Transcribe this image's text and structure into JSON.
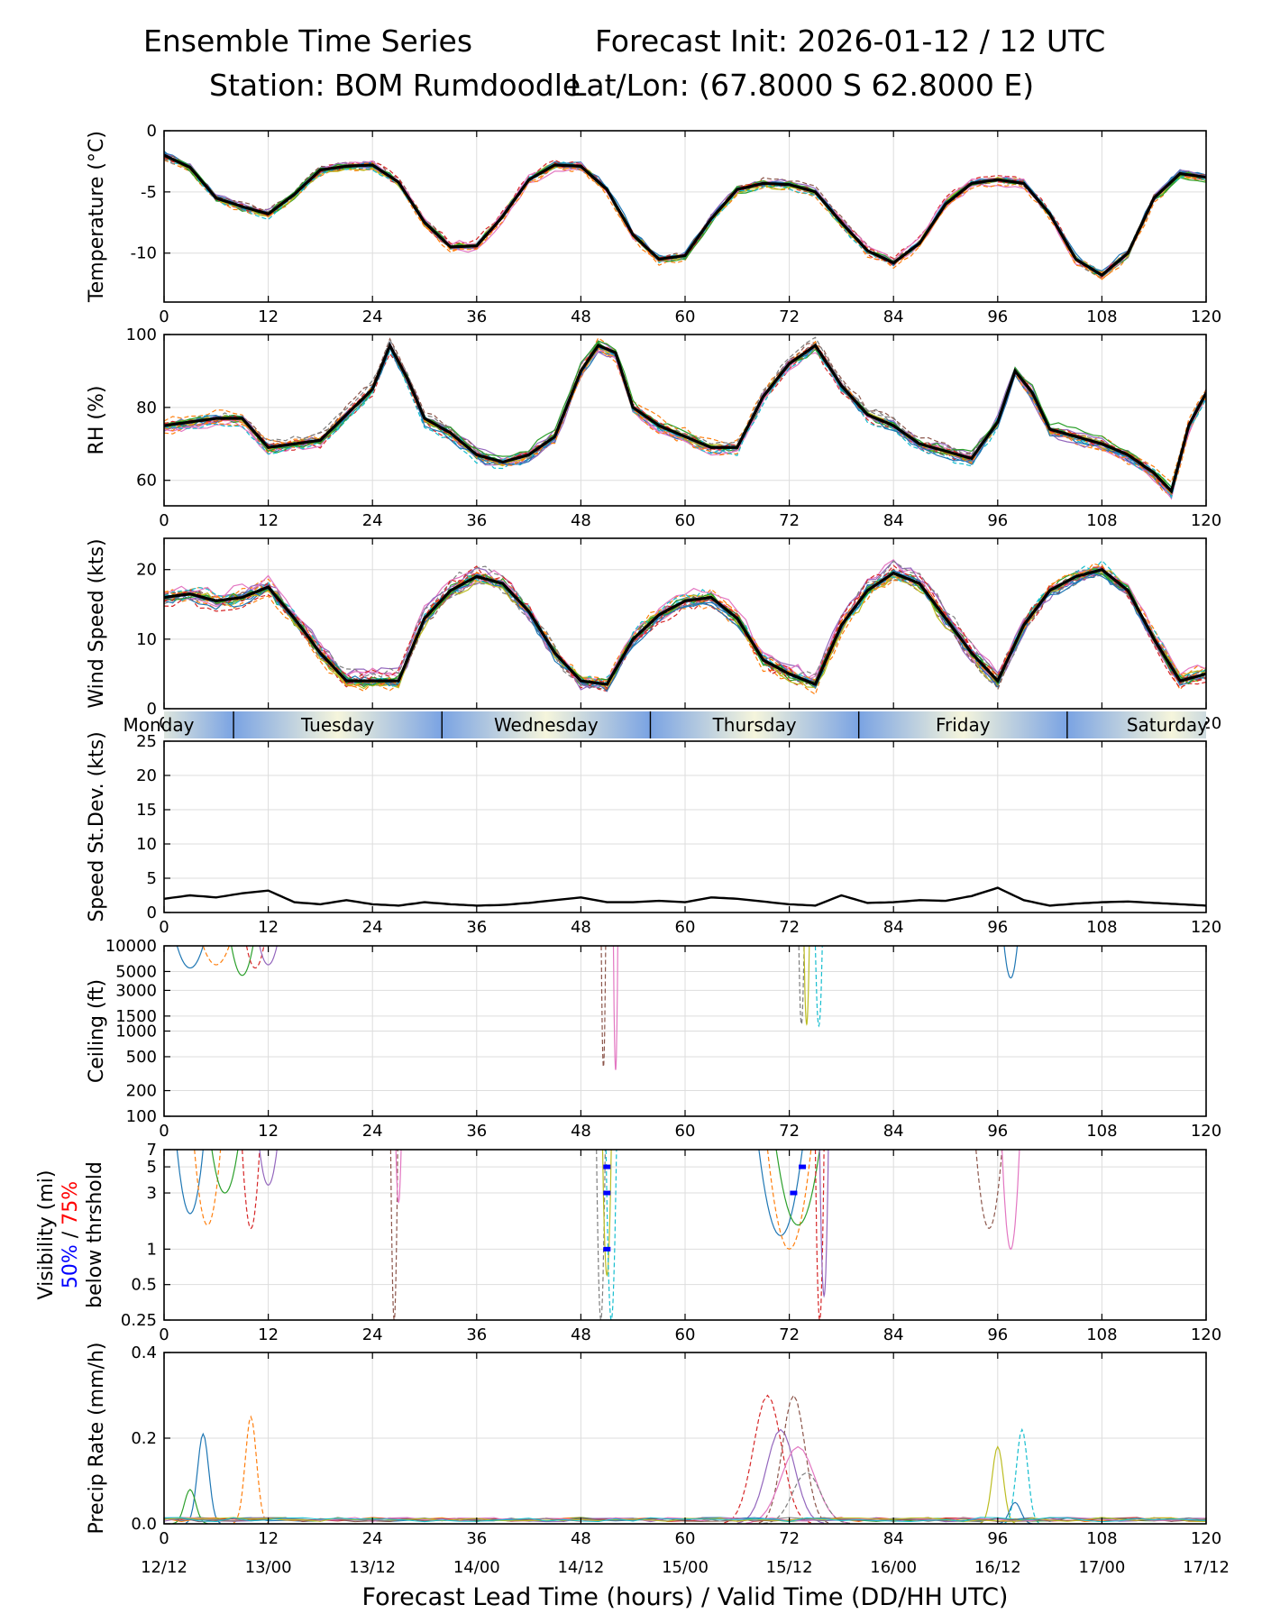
{
  "header": {
    "title": "Ensemble Time Series",
    "init": "Forecast Init: 2026-01-12 / 12 UTC",
    "station": "Station: BOM Rumdoodle",
    "latlon": "Lat/Lon: (67.8000 S 62.8000 E)"
  },
  "colors": {
    "members": [
      "#1f77b4",
      "#ff7f0e",
      "#2ca02c",
      "#d62728",
      "#9467bd",
      "#8c564b",
      "#e377c2",
      "#7f7f7f",
      "#bcbd22",
      "#17becf"
    ],
    "mean": "#000000",
    "p50": "#0000ff",
    "p75": "#ff0000",
    "grid": "#dddddd",
    "day_blue": "#7aa3e3",
    "day_cream": "#f5f5dc"
  },
  "chart_data": {
    "type": "line",
    "x_range": [
      0,
      120
    ],
    "x_ticks": [
      0,
      12,
      24,
      36,
      48,
      60,
      72,
      84,
      96,
      108,
      120
    ],
    "valid_time_labels": [
      "12/12",
      "13/00",
      "13/12",
      "14/00",
      "14/12",
      "15/00",
      "15/12",
      "16/00",
      "16/12",
      "17/00",
      "17/12"
    ],
    "xlabel": "Forecast Lead Time (hours) / Valid Time (DD/HH UTC)",
    "day_names": [
      {
        "name": "Monday",
        "start": -12,
        "end": 8
      },
      {
        "name": "Tuesday",
        "start": 8,
        "end": 32
      },
      {
        "name": "Wednesday",
        "start": 32,
        "end": 56
      },
      {
        "name": "Thursday",
        "start": 56,
        "end": 80
      },
      {
        "name": "Friday",
        "start": 80,
        "end": 104
      },
      {
        "name": "Saturday",
        "start": 104,
        "end": 128
      }
    ],
    "panels": [
      {
        "key": "temperature",
        "ylabel": "Temperature (°C)",
        "scale": "linear",
        "ylim": [
          -14,
          0
        ],
        "yticks": [
          0,
          -5,
          -10
        ],
        "ytick_labels": [
          "0",
          "-5",
          "-10"
        ],
        "mean": {
          "x": [
            0,
            3,
            6,
            9,
            12,
            15,
            18,
            21,
            24,
            27,
            30,
            33,
            36,
            39,
            42,
            45,
            48,
            51,
            54,
            57,
            60,
            63,
            66,
            69,
            72,
            75,
            78,
            81,
            84,
            87,
            90,
            93,
            96,
            99,
            102,
            105,
            108,
            111,
            114,
            117,
            120
          ],
          "y": [
            -2,
            -3,
            -5.5,
            -6.2,
            -6.8,
            -5.2,
            -3.2,
            -2.9,
            -2.8,
            -4.2,
            -7.5,
            -9.5,
            -9.4,
            -7.0,
            -4.0,
            -2.8,
            -2.9,
            -4.8,
            -8.5,
            -10.5,
            -10.2,
            -7.2,
            -4.8,
            -4.3,
            -4.4,
            -5.0,
            -7.5,
            -9.8,
            -10.8,
            -9.2,
            -6.0,
            -4.3,
            -4.0,
            -4.3,
            -6.8,
            -10.5,
            -11.8,
            -10.0,
            -5.5,
            -3.5,
            -3.8
          ]
        },
        "spread": 0.7
      },
      {
        "key": "rh",
        "ylabel": "RH (%)",
        "scale": "linear",
        "ylim": [
          53,
          100
        ],
        "yticks": [
          60,
          80,
          100
        ],
        "ytick_labels": [
          "60",
          "80",
          "100"
        ],
        "mean": {
          "x": [
            0,
            3,
            6,
            9,
            12,
            15,
            18,
            21,
            24,
            26,
            28,
            30,
            33,
            36,
            39,
            42,
            45,
            48,
            50,
            52,
            54,
            57,
            60,
            63,
            66,
            69,
            72,
            75,
            78,
            81,
            84,
            87,
            90,
            93,
            96,
            98,
            100,
            102,
            105,
            108,
            111,
            114,
            116,
            118,
            120
          ],
          "y": [
            75,
            76,
            77,
            77,
            69,
            70,
            71,
            78,
            85,
            97,
            88,
            77,
            73,
            67,
            65,
            67,
            72,
            90,
            97,
            95,
            80,
            75,
            72,
            69,
            69,
            83,
            92,
            97,
            86,
            78,
            75,
            70,
            68,
            66,
            76,
            90,
            84,
            74,
            72,
            70,
            67,
            62,
            57,
            75,
            84
          ]
        },
        "spread": 3
      },
      {
        "key": "wind",
        "ylabel": "Wind Speed (kts)",
        "scale": "linear",
        "ylim": [
          0,
          24.5
        ],
        "yticks": [
          0,
          10,
          20
        ],
        "ytick_labels": [
          "0",
          "10",
          "20"
        ],
        "mean": {
          "x": [
            0,
            3,
            6,
            9,
            12,
            15,
            18,
            21,
            24,
            27,
            30,
            33,
            36,
            39,
            42,
            45,
            48,
            51,
            54,
            57,
            60,
            63,
            66,
            69,
            72,
            75,
            78,
            81,
            84,
            87,
            90,
            93,
            96,
            99,
            102,
            105,
            108,
            111,
            114,
            117,
            120
          ],
          "y": [
            16,
            16.5,
            15.5,
            16,
            17.5,
            13,
            8,
            4,
            4,
            4,
            13,
            17,
            19,
            18,
            14,
            8,
            4,
            3.5,
            10,
            13.5,
            15.5,
            16,
            13,
            7,
            5,
            3.5,
            12,
            17,
            19.5,
            18,
            13,
            8,
            4,
            12,
            17,
            19,
            20,
            17,
            10,
            4,
            5
          ]
        },
        "spread": 2.5
      },
      {
        "key": "speed_sd",
        "ylabel": "Speed St.Dev. (kts)",
        "scale": "linear",
        "ylim": [
          0,
          25
        ],
        "yticks": [
          0,
          5,
          10,
          15,
          20,
          25
        ],
        "ytick_labels": [
          "0",
          "5",
          "10",
          "15",
          "20",
          "25"
        ],
        "mean": {
          "x": [
            0,
            3,
            6,
            9,
            12,
            15,
            18,
            21,
            24,
            27,
            30,
            33,
            36,
            39,
            42,
            45,
            48,
            51,
            54,
            57,
            60,
            63,
            66,
            69,
            72,
            75,
            78,
            81,
            84,
            87,
            90,
            93,
            96,
            99,
            102,
            105,
            108,
            111,
            114,
            117,
            120
          ],
          "y": [
            2,
            2.5,
            2.2,
            2.8,
            3.2,
            1.5,
            1.2,
            1.8,
            1.2,
            1,
            1.5,
            1.2,
            1,
            1.1,
            1.4,
            1.8,
            2.2,
            1.5,
            1.5,
            1.7,
            1.5,
            2.2,
            2.0,
            1.6,
            1.2,
            1.0,
            2.5,
            1.4,
            1.5,
            1.8,
            1.7,
            2.4,
            3.6,
            1.8,
            1.0,
            1.3,
            1.5,
            1.6,
            1.4,
            1.2,
            1.0
          ]
        },
        "spread": 0
      },
      {
        "key": "ceiling",
        "ylabel": "Ceiling (ft)",
        "scale": "log",
        "ylim": [
          100,
          10000
        ],
        "yticks": [
          100,
          200,
          500,
          1000,
          1500,
          3000,
          5000,
          10000
        ],
        "ytick_labels": [
          "100",
          "200",
          "500",
          "1000",
          "1500",
          "3000",
          "5000",
          "10000"
        ],
        "events": [
          {
            "at": 3,
            "min": 5500,
            "width": 3
          },
          {
            "at": 6,
            "min": 6000,
            "width": 3
          },
          {
            "at": 9,
            "min": 4500,
            "width": 2.5
          },
          {
            "at": 10.5,
            "min": 5500,
            "width": 2
          },
          {
            "at": 12,
            "min": 6000,
            "width": 2
          },
          {
            "at": 50.6,
            "min": 380,
            "width": 0.5
          },
          {
            "at": 52,
            "min": 350,
            "width": 0.5
          },
          {
            "at": 73.4,
            "min": 1200,
            "width": 0.6
          },
          {
            "at": 74,
            "min": 1200,
            "width": 0.6
          },
          {
            "at": 75.4,
            "min": 1150,
            "width": 0.8
          },
          {
            "at": 97.5,
            "min": 4200,
            "width": 1.5
          }
        ]
      },
      {
        "key": "visibility",
        "ylabel": "Visibility (mi)",
        "scale": "log",
        "ylim": [
          0.25,
          7
        ],
        "yticks": [
          0.25,
          0.5,
          1,
          3,
          5,
          7
        ],
        "ytick_labels": [
          "0.25",
          "0.5",
          "1",
          "3",
          "5",
          "7"
        ],
        "ylabel_50": "50%",
        "ylabel_sep": " / ",
        "ylabel_75": "75%",
        "ylabel_suffix": "below thrshold",
        "events": [
          {
            "at": 3,
            "min": 2,
            "width": 3
          },
          {
            "at": 5,
            "min": 1.6,
            "width": 3
          },
          {
            "at": 7,
            "min": 3,
            "width": 3
          },
          {
            "at": 10,
            "min": 1.5,
            "width": 2
          },
          {
            "at": 12,
            "min": 3.5,
            "width": 2
          },
          {
            "at": 26.5,
            "min": 0.25,
            "width": 0.8
          },
          {
            "at": 27,
            "min": 2.5,
            "width": 0.6
          },
          {
            "at": 50.3,
            "min": 0.25,
            "width": 1
          },
          {
            "at": 51,
            "min": 0.6,
            "width": 1
          },
          {
            "at": 51.5,
            "min": 0.25,
            "width": 1.2
          },
          {
            "at": 71,
            "min": 1.3,
            "width": 5
          },
          {
            "at": 72,
            "min": 1.0,
            "width": 5
          },
          {
            "at": 73,
            "min": 1.6,
            "width": 5
          },
          {
            "at": 75.5,
            "min": 0.25,
            "width": 1
          },
          {
            "at": 76,
            "min": 0.4,
            "width": 1
          },
          {
            "at": 95,
            "min": 1.5,
            "width": 3
          },
          {
            "at": 97.5,
            "min": 1.0,
            "width": 2
          }
        ],
        "threshold_50": [
          {
            "x": 51,
            "y": 5
          },
          {
            "x": 51,
            "y": 3
          },
          {
            "x": 51,
            "y": 1
          },
          {
            "x": 73.5,
            "y": 5
          },
          {
            "x": 72.5,
            "y": 3
          }
        ]
      },
      {
        "key": "precip",
        "ylabel": "Precip Rate (mm/h)",
        "scale": "linear",
        "ylim": [
          0,
          0.4
        ],
        "yticks": [
          0,
          0.2,
          0.4
        ],
        "ytick_labels": [
          "0.0",
          "0.2",
          "0.4"
        ],
        "events": [
          {
            "at": 4.5,
            "max": 0.21,
            "width": 2
          },
          {
            "at": 10,
            "max": 0.25,
            "width": 2
          },
          {
            "at": 3,
            "max": 0.08,
            "width": 2
          },
          {
            "at": 69.5,
            "max": 0.3,
            "width": 5
          },
          {
            "at": 71,
            "max": 0.22,
            "width": 5
          },
          {
            "at": 72.5,
            "max": 0.3,
            "width": 4
          },
          {
            "at": 73,
            "max": 0.18,
            "width": 6
          },
          {
            "at": 74,
            "max": 0.12,
            "width": 5
          },
          {
            "at": 96,
            "max": 0.18,
            "width": 2
          },
          {
            "at": 98.8,
            "max": 0.22,
            "width": 2
          },
          {
            "at": 98,
            "max": 0.05,
            "width": 2
          }
        ]
      }
    ]
  }
}
